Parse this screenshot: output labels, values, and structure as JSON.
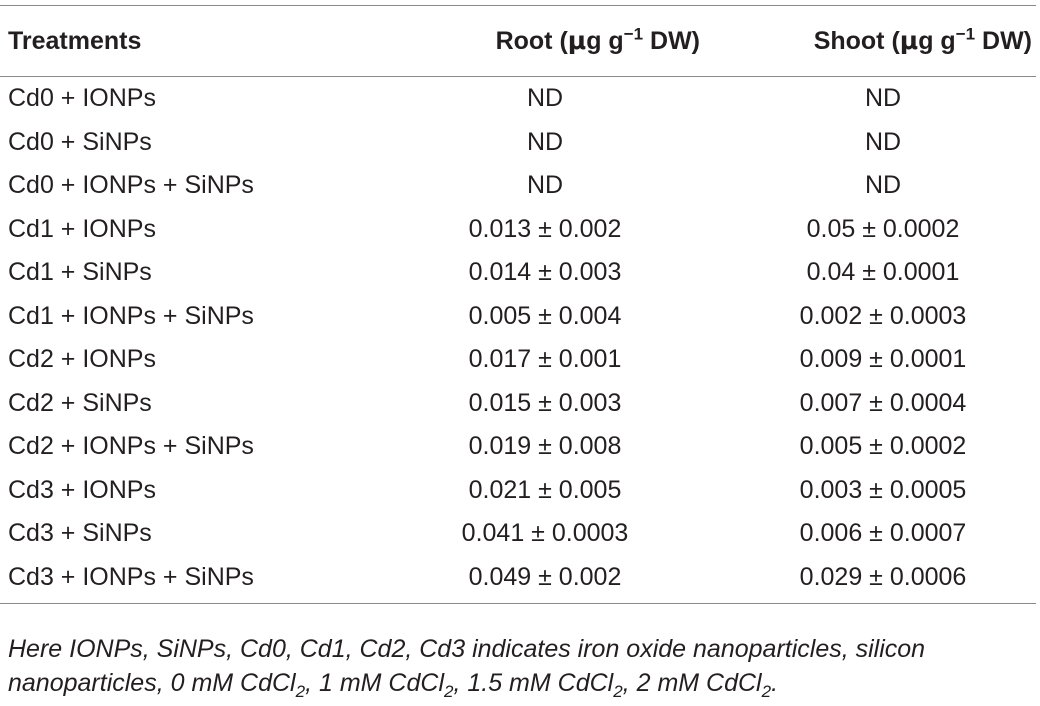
{
  "table": {
    "headers": {
      "treatments": "Treatments",
      "root_pre": "Root (",
      "root_unit_mu": "μ",
      "root_unit_g": "g g",
      "root_sup": "−1",
      "root_post": " DW)",
      "shoot_pre": "Shoot (",
      "shoot_unit_mu": "μ",
      "shoot_unit_g": "g g",
      "shoot_sup": "−1",
      "shoot_post": " DW)"
    },
    "rows": [
      {
        "treatment": "Cd0 + IONPs",
        "root": "ND",
        "shoot": "ND"
      },
      {
        "treatment": "Cd0 + SiNPs",
        "root": "ND",
        "shoot": "ND"
      },
      {
        "treatment": "Cd0 + IONPs + SiNPs",
        "root": "ND",
        "shoot": "ND"
      },
      {
        "treatment": "Cd1 + IONPs",
        "root": "0.013 ± 0.002",
        "shoot": "0.05 ± 0.0002"
      },
      {
        "treatment": "Cd1 + SiNPs",
        "root": "0.014 ± 0.003",
        "shoot": "0.04 ± 0.0001"
      },
      {
        "treatment": "Cd1 + IONPs + SiNPs",
        "root": "0.005 ± 0.004",
        "shoot": "0.002 ± 0.0003"
      },
      {
        "treatment": "Cd2 + IONPs",
        "root": "0.017 ± 0.001",
        "shoot": "0.009 ± 0.0001"
      },
      {
        "treatment": "Cd2 + SiNPs",
        "root": "0.015 ± 0.003",
        "shoot": "0.007 ± 0.0004"
      },
      {
        "treatment": "Cd2 + IONPs + SiNPs",
        "root": "0.019 ± 0.008",
        "shoot": "0.005 ± 0.0002"
      },
      {
        "treatment": "Cd3 + IONPs",
        "root": "0.021 ± 0.005",
        "shoot": "0.003 ± 0.0005"
      },
      {
        "treatment": "Cd3 + SiNPs",
        "root": "0.041 ± 0.0003",
        "shoot": "0.006 ± 0.0007"
      },
      {
        "treatment": "Cd3 + IONPs + SiNPs",
        "root": "0.049 ± 0.002",
        "shoot": "0.029 ± 0.0006"
      }
    ]
  },
  "footnote": {
    "line1": "Here IONPs, SiNPs, Cd0, Cd1, Cd2, Cd3 indicates iron oxide nanoparticles, silicon",
    "line2_a": "nanoparticles, 0 mM CdCl",
    "line2_b": ", 1 mM CdCl",
    "line2_c": ", 1.5 mM CdCl",
    "line2_d": ", 2 mM CdCl",
    "line2_end": ".",
    "sub": "2"
  }
}
